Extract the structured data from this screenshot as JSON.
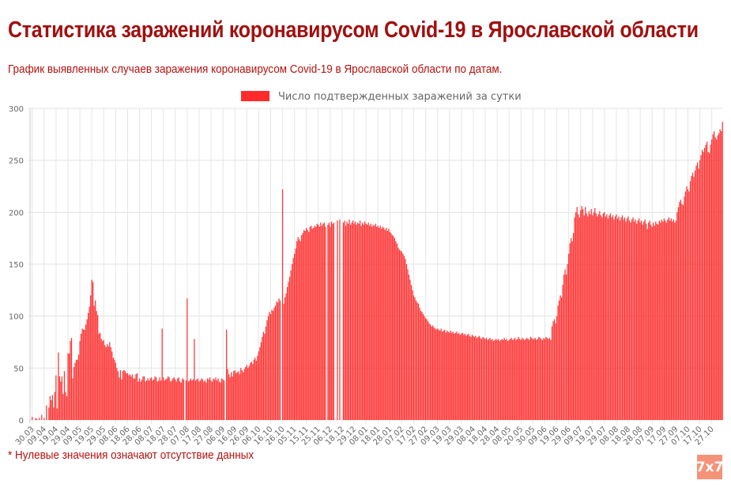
{
  "header": {
    "title": "Статистика заражений коронавирусом Covid-19 в Ярославской области",
    "subtitle": "График выявленных случаев заражения коронавирусом Covid-19 в Ярославской области по датам."
  },
  "footnote": "* Нулевые значения означают отсутствие данных",
  "logo": "7x7",
  "colors": {
    "bar": "#ff2b2b",
    "title": "#a0100f",
    "logo": "#f4937a"
  },
  "chart_data": {
    "type": "bar",
    "title": "",
    "legend": [
      {
        "label": "Число подтвержденных заражений за сутки",
        "color": "#ff2b2b"
      }
    ],
    "legend_position": "top-center",
    "xlabel": "",
    "ylabel": "",
    "ylim": [
      0,
      300
    ],
    "y_ticks": [
      0,
      50,
      100,
      150,
      200,
      250,
      300
    ],
    "grid": true,
    "x_tick_every": 10,
    "x_tick_labels": [
      "30.03",
      "09.04",
      "19.04",
      "29.04",
      "09.05",
      "19.05",
      "29.05",
      "08.06",
      "18.06",
      "28.06",
      "08.07",
      "18.07",
      "28.07",
      "07.08",
      "17.08",
      "27.08",
      "06.09",
      "16.09",
      "26.09",
      "06.10",
      "16.10",
      "26.10",
      "05.11",
      "15.11",
      "25.11",
      "06.12",
      "18.12",
      "29.12",
      "08.01",
      "18.01",
      "28.01",
      "07.02",
      "17.02",
      "27.02",
      "09.03",
      "19.03",
      "29.03",
      "08.04",
      "18.04",
      "28.04",
      "08.05",
      "20.05",
      "30.05",
      "09.06",
      "19.06",
      "29.06",
      "09.07",
      "19.07",
      "29.07",
      "08.08",
      "18.08",
      "28.08",
      "07.09",
      "17.09",
      "27.09",
      "07.10",
      "17.10",
      "27.10"
    ],
    "values": [
      3,
      0,
      0,
      2,
      1,
      0,
      2,
      0,
      5,
      0,
      2,
      0,
      14,
      0,
      12,
      23,
      19,
      24,
      12,
      27,
      43,
      11,
      65,
      42,
      37,
      42,
      25,
      47,
      27,
      23,
      64,
      64,
      76,
      79,
      40,
      51,
      55,
      58,
      58,
      63,
      76,
      83,
      88,
      87,
      87,
      92,
      97,
      103,
      109,
      120,
      135,
      133,
      110,
      115,
      105,
      101,
      83,
      84,
      78,
      76,
      77,
      72,
      70,
      73,
      71,
      75,
      70,
      66,
      60,
      58,
      55,
      50,
      47,
      41,
      48,
      39,
      47,
      48,
      47,
      45,
      45,
      43,
      44,
      42,
      44,
      40,
      40,
      44,
      45,
      37,
      40,
      37,
      39,
      42,
      42,
      37,
      38,
      40,
      38,
      40,
      41,
      38,
      39,
      42,
      41,
      37,
      38,
      41,
      38,
      88,
      41,
      38,
      39,
      40,
      42,
      41,
      37,
      38,
      40,
      41,
      39,
      37,
      40,
      41,
      37,
      36,
      40,
      39,
      0,
      38,
      117,
      37,
      38,
      40,
      38,
      39,
      78,
      38,
      39,
      40,
      37,
      38,
      40,
      39,
      37,
      38,
      36,
      40,
      39,
      41,
      38,
      37,
      40,
      39,
      41,
      38,
      40,
      37,
      36,
      40,
      39,
      38,
      0,
      87,
      49,
      44,
      41,
      46,
      42,
      47,
      48,
      45,
      46,
      47,
      44,
      50,
      48,
      46,
      49,
      51,
      53,
      50,
      52,
      55,
      56,
      54,
      58,
      60,
      57,
      62,
      66,
      70,
      75,
      80,
      85,
      83,
      90,
      96,
      100,
      104,
      102,
      106,
      105,
      108,
      110,
      114,
      113,
      117,
      115,
      0,
      222,
      112,
      118,
      122,
      128,
      133,
      138,
      144,
      150,
      156,
      160,
      165,
      172,
      176,
      174,
      172,
      178,
      180,
      183,
      182,
      185,
      183,
      181,
      186,
      187,
      184,
      185,
      187,
      186,
      189,
      188,
      186,
      190,
      187,
      189,
      190,
      186,
      0,
      188,
      190,
      186,
      191,
      189,
      190,
      0,
      0,
      192,
      0,
      193,
      0,
      0,
      190,
      192,
      187,
      191,
      189,
      193,
      188,
      190,
      192,
      189,
      191,
      188,
      190,
      189,
      192,
      187,
      190,
      188,
      191,
      189,
      188,
      190,
      187,
      189,
      186,
      188,
      187,
      189,
      186,
      187,
      185,
      187,
      184,
      186,
      185,
      183,
      185,
      182,
      184,
      181,
      180,
      178,
      177,
      175,
      172,
      170,
      166,
      164,
      163,
      162,
      160,
      158,
      155,
      150,
      145,
      140,
      135,
      130,
      125,
      120,
      118,
      115,
      113,
      112,
      108,
      105,
      104,
      102,
      100,
      98,
      97,
      95,
      93,
      92,
      90,
      91,
      89,
      88,
      87,
      88,
      87,
      86,
      88,
      85,
      86,
      87,
      84,
      86,
      85,
      84,
      86,
      84,
      85,
      83,
      84,
      85,
      83,
      84,
      82,
      83,
      84,
      82,
      83,
      81,
      82,
      83,
      81,
      80,
      82,
      81,
      80,
      81,
      79,
      80,
      81,
      79,
      78,
      80,
      79,
      78,
      79,
      77,
      78,
      79,
      77,
      78,
      76,
      77,
      78,
      77,
      78,
      76,
      77,
      78,
      77,
      79,
      77,
      78,
      76,
      77,
      78,
      79,
      77,
      78,
      79,
      77,
      78,
      80,
      78,
      77,
      79,
      78,
      77,
      78,
      79,
      78,
      77,
      80,
      79,
      78,
      78,
      79,
      77,
      78,
      80,
      79,
      78,
      77,
      79,
      78,
      80,
      79,
      78,
      79,
      77,
      90,
      95,
      97,
      93,
      100,
      110,
      115,
      120,
      118,
      130,
      140,
      145,
      140,
      150,
      160,
      170,
      175,
      172,
      180,
      195,
      200,
      205,
      198,
      195,
      202,
      206,
      203,
      197,
      205,
      199,
      196,
      201,
      198,
      203,
      197,
      200,
      204,
      199,
      196,
      198,
      201,
      197,
      195,
      199,
      200,
      196,
      198,
      194,
      197,
      199,
      195,
      197,
      193,
      196,
      198,
      194,
      196,
      192,
      195,
      197,
      193,
      195,
      191,
      194,
      196,
      192,
      190,
      193,
      195,
      191,
      193,
      189,
      192,
      194,
      190,
      192,
      188,
      191,
      193,
      189,
      184,
      190,
      192,
      188,
      186,
      190,
      187,
      191,
      189,
      188,
      192,
      190,
      193,
      191,
      194,
      192,
      190,
      193,
      195,
      192,
      194,
      191,
      193,
      190,
      192,
      200,
      205,
      210,
      212,
      208,
      207,
      215,
      220,
      225,
      222,
      220,
      230,
      235,
      238,
      234,
      240,
      245,
      248,
      242,
      250,
      255,
      260,
      258,
      262,
      265,
      268,
      258,
      257,
      265,
      270,
      275,
      278,
      272,
      270,
      274,
      276,
      280,
      278,
      287
    ]
  }
}
